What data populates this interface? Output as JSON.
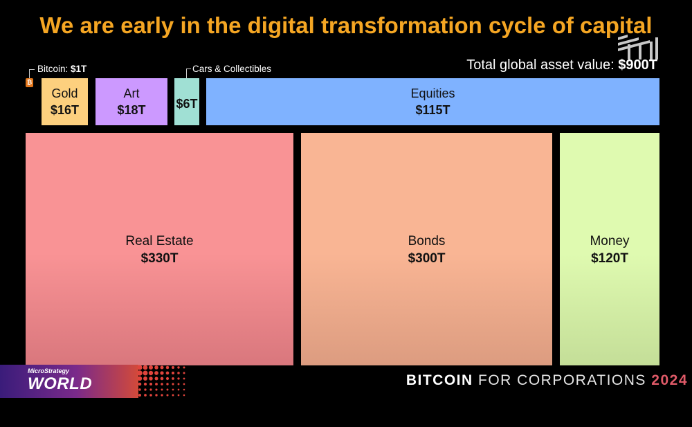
{
  "title": "We are early in the digital transformation cycle of capital",
  "total_label": "Total global asset value: ",
  "total_value": "$900T",
  "callouts": {
    "bitcoin_label": "Bitcoin: ",
    "bitcoin_value": "$1T",
    "cars_label": "Cars & Collectibles"
  },
  "footer": {
    "brand_small": "MicroStrategy",
    "brand_big": "WORLD",
    "part1": "BITCOIN",
    "part2": " FOR CORPORATIONS ",
    "year": "2024"
  },
  "chart_data": {
    "type": "treemap",
    "title": "We are early in the digital transformation cycle of capital",
    "units": "USD trillions",
    "total": 900,
    "items": [
      {
        "name": "Bitcoin",
        "value": 1,
        "label": "$1T",
        "color": "#e2761b"
      },
      {
        "name": "Gold",
        "value": 16,
        "label": "$16T",
        "color": "#fdd07e"
      },
      {
        "name": "Art",
        "value": 18,
        "label": "$18T",
        "color": "#cc99ff"
      },
      {
        "name": "Cars & Collectibles",
        "value": 6,
        "label": "$6T",
        "color": "#a0e0d4"
      },
      {
        "name": "Equities",
        "value": 115,
        "label": "$115T",
        "color": "#7fb2ff"
      },
      {
        "name": "Real Estate",
        "value": 330,
        "label": "$330T",
        "color": "#f99395"
      },
      {
        "name": "Bonds",
        "value": 300,
        "label": "$300T",
        "color": "#f9b594"
      },
      {
        "name": "Money",
        "value": 120,
        "label": "$120T",
        "color": "#dffab0"
      }
    ]
  }
}
